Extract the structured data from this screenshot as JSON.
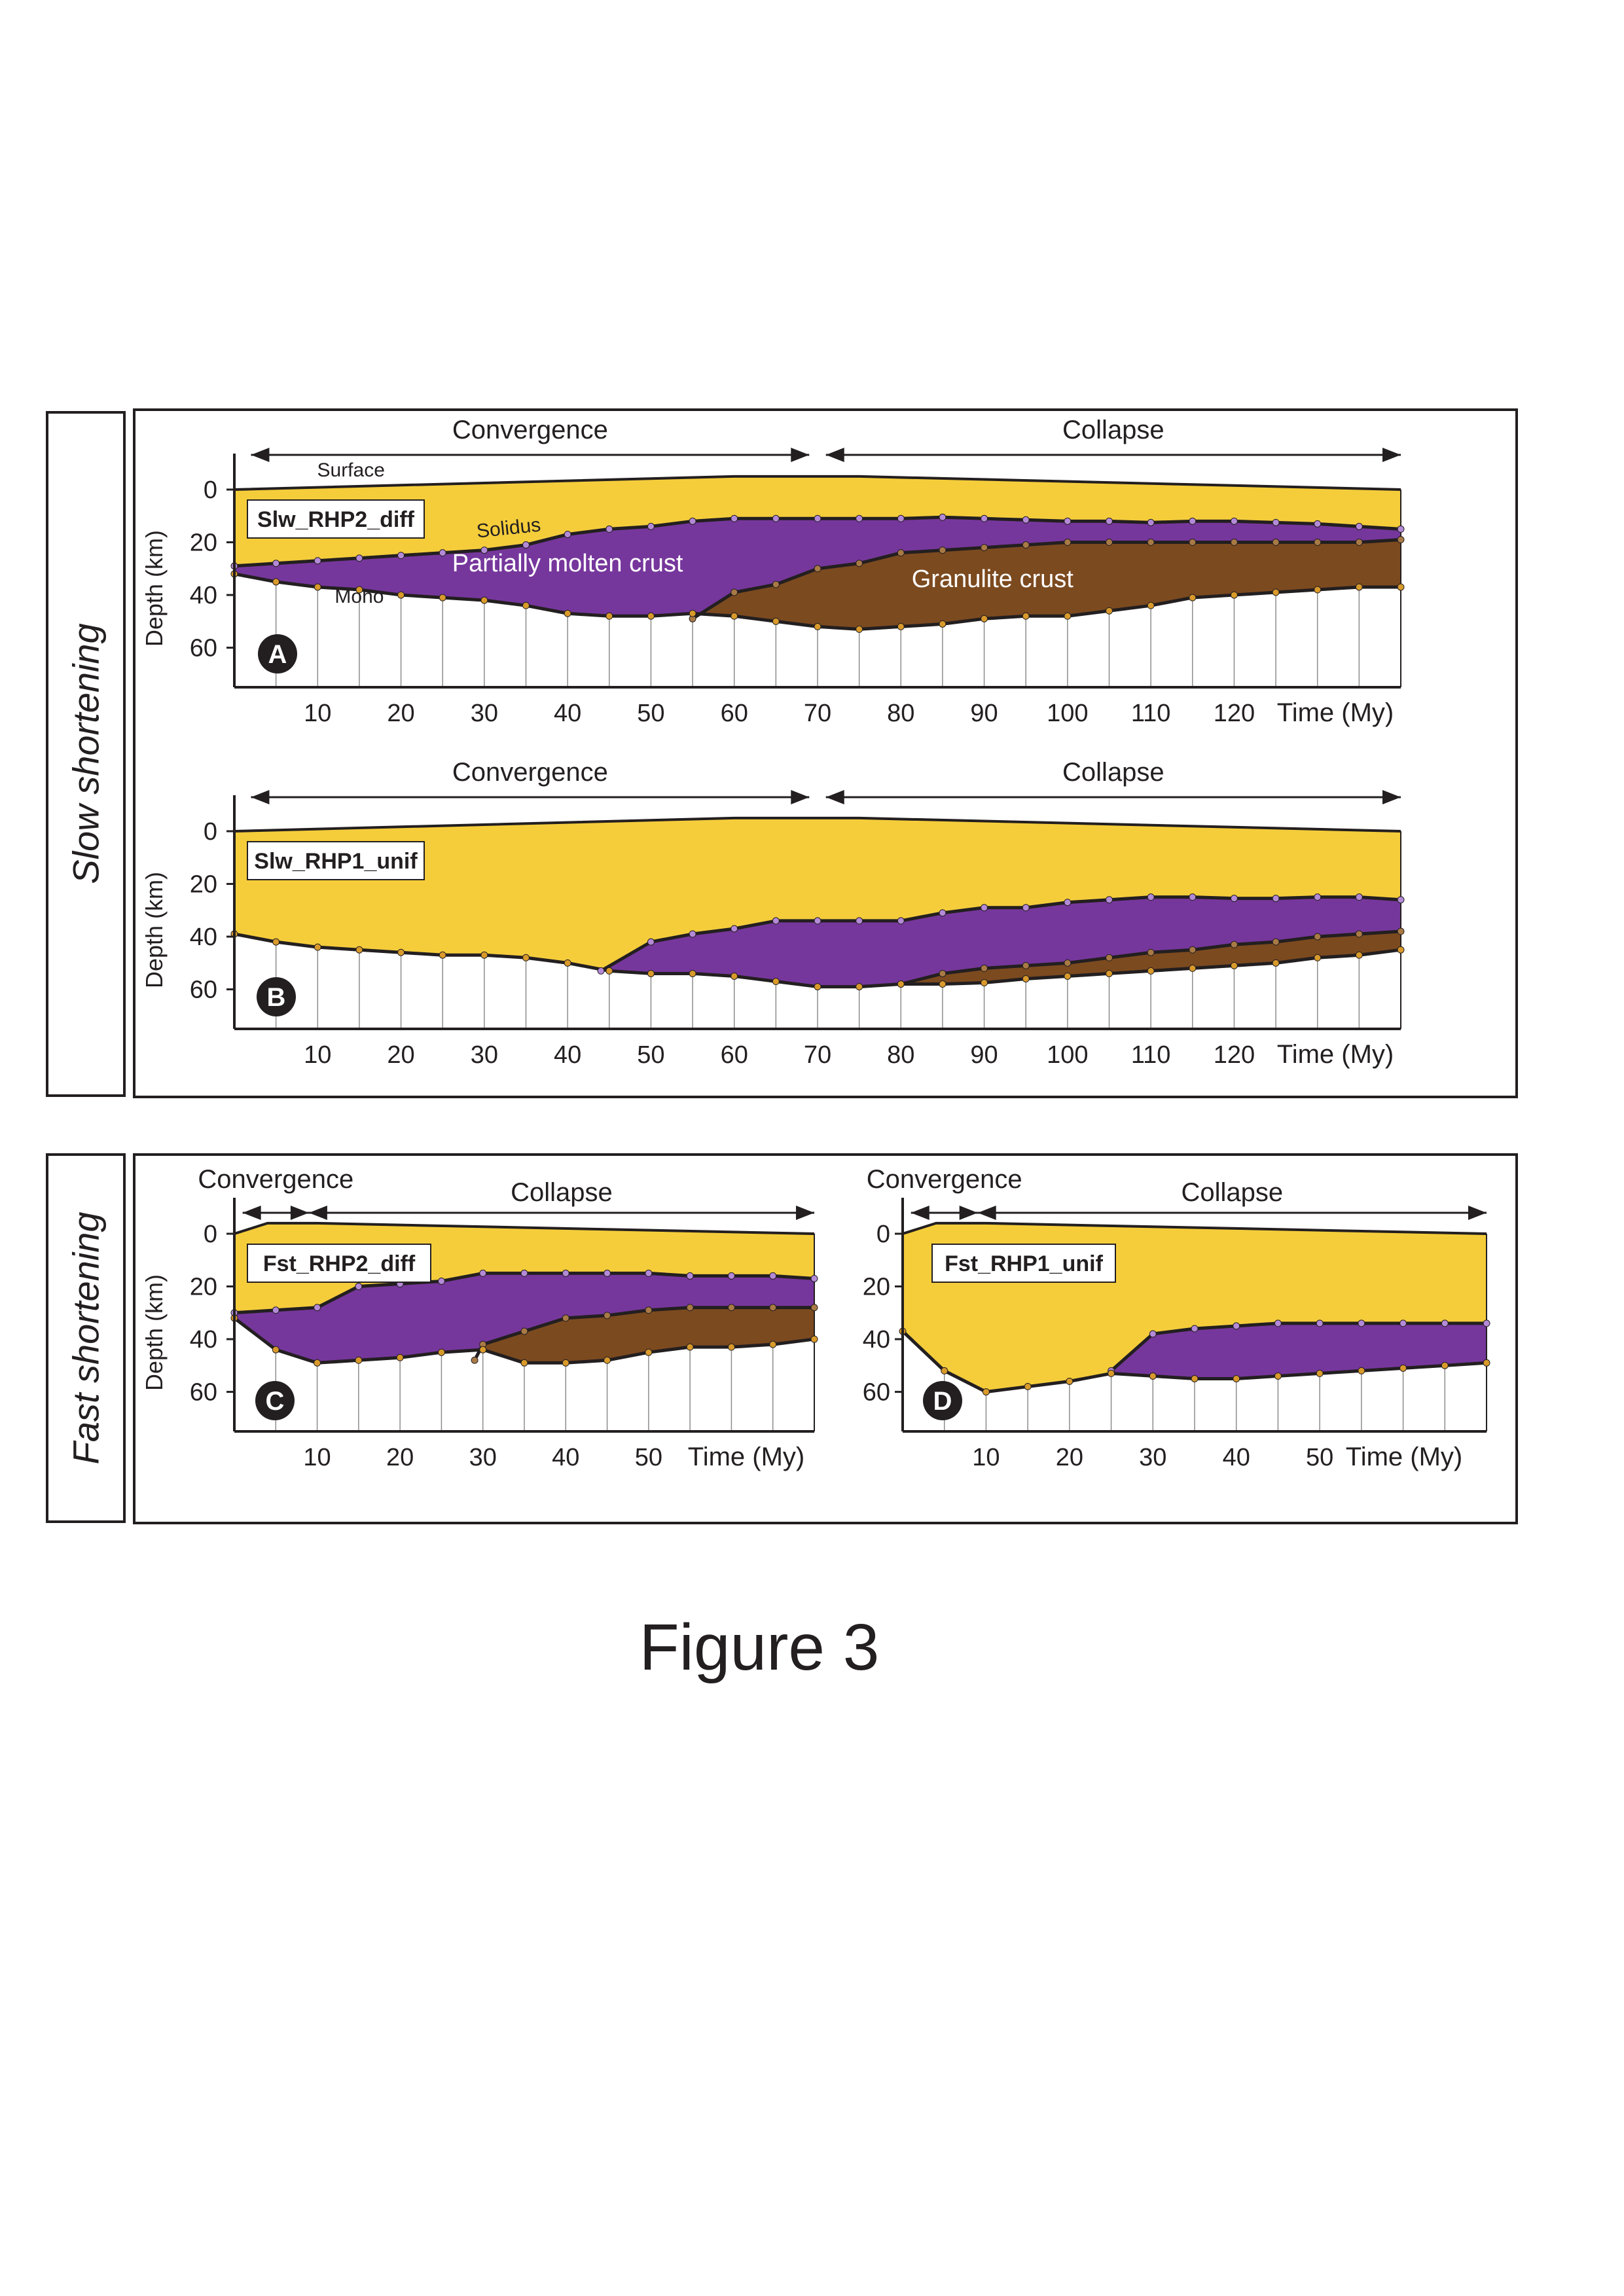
{
  "figure": {
    "caption": "Figure 3"
  },
  "groups": [
    {
      "label": "Slow shortening"
    },
    {
      "label": "Fast shortening"
    }
  ],
  "colors": {
    "upper_crust": "#f5cd3b",
    "partially_molten": "#76379c",
    "granulite": "#7c4a1f",
    "outline": "#231f20",
    "grid": "#8c8c8c",
    "badge": "#231f20",
    "dot_purple": "#b48ad8",
    "dot_brown": "#a97a45",
    "dot_yellow": "#d99a2b"
  },
  "chart_data": [
    {
      "type": "area",
      "panel": "A",
      "model": "Slw_RHP2_diff",
      "ylabel": "Depth (km)",
      "xlabel": "Time (My)",
      "yticks": [
        "0",
        "20",
        "40",
        "60"
      ],
      "xticks": [
        "10",
        "20",
        "30",
        "40",
        "50",
        "60",
        "70",
        "80",
        "90",
        "100",
        "110",
        "120"
      ],
      "ylim": [
        0,
        75
      ],
      "xlim": [
        0,
        140
      ],
      "phases": [
        {
          "label": "Convergence",
          "x_start": 2,
          "x_end": 69
        },
        {
          "label": "Collapse",
          "x_start": 71,
          "x_end": 140
        }
      ],
      "annotations": [
        {
          "text": "Surface",
          "x": 14,
          "y": -5,
          "color": "#231f20",
          "size": 30,
          "rotate": 0
        },
        {
          "text": "Solidus",
          "x": 33,
          "y": 17,
          "color": "#231f20",
          "size": 30,
          "rotate": -6
        },
        {
          "text": "Moho",
          "x": 15,
          "y": 43,
          "color": "#231f20",
          "size": 30,
          "rotate": 0
        },
        {
          "text": "Partially molten crust",
          "x": 40,
          "y": 31,
          "color": "#ffffff",
          "size": 38,
          "rotate": 0
        },
        {
          "text": "Granulite crust",
          "x": 91,
          "y": 37,
          "color": "#ffffff",
          "size": 38,
          "rotate": 0
        }
      ],
      "surface": {
        "x": [
          0,
          60,
          75,
          140
        ],
        "y": [
          0,
          -5,
          -5,
          0
        ]
      },
      "series": [
        {
          "name": "Solidus",
          "x": [
            0,
            5,
            10,
            15,
            20,
            25,
            30,
            35,
            40,
            45,
            50,
            55,
            60,
            65,
            70,
            75,
            80,
            85,
            90,
            95,
            100,
            105,
            110,
            115,
            120,
            125,
            130,
            135,
            140
          ],
          "y": [
            29,
            28,
            27,
            26,
            25,
            24,
            23,
            21,
            17,
            15,
            14,
            12,
            11,
            11,
            11,
            11,
            11,
            10.5,
            11,
            11.5,
            12,
            12,
            12.5,
            12,
            12,
            12.5,
            13,
            14,
            15
          ]
        },
        {
          "name": "Granulite top",
          "x": [
            55,
            60,
            65,
            70,
            75,
            80,
            85,
            90,
            95,
            100,
            105,
            110,
            115,
            120,
            125,
            130,
            135,
            140
          ],
          "y": [
            49,
            39,
            36,
            30,
            28,
            24,
            23,
            22,
            21,
            20,
            20,
            20,
            20,
            20,
            20,
            20,
            20,
            19
          ]
        },
        {
          "name": "Moho",
          "x": [
            0,
            5,
            10,
            15,
            20,
            25,
            30,
            35,
            40,
            45,
            50,
            55,
            60,
            65,
            70,
            75,
            80,
            85,
            90,
            95,
            100,
            105,
            110,
            115,
            120,
            125,
            130,
            135,
            140
          ],
          "y": [
            32,
            35,
            37,
            38,
            40,
            41,
            42,
            44,
            47,
            48,
            48,
            47,
            48,
            50,
            52,
            53,
            52,
            51,
            49,
            48,
            48,
            46,
            44,
            41,
            40,
            39,
            38,
            37,
            37
          ]
        }
      ]
    },
    {
      "type": "area",
      "panel": "B",
      "model": "Slw_RHP1_unif",
      "ylabel": "Depth (km)",
      "xlabel": "Time (My)",
      "yticks": [
        "0",
        "20",
        "40",
        "60"
      ],
      "xticks": [
        "10",
        "20",
        "30",
        "40",
        "50",
        "60",
        "70",
        "80",
        "90",
        "100",
        "110",
        "120"
      ],
      "ylim": [
        0,
        75
      ],
      "xlim": [
        0,
        140
      ],
      "phases": [
        {
          "label": "Convergence",
          "x_start": 2,
          "x_end": 69
        },
        {
          "label": "Collapse",
          "x_start": 71,
          "x_end": 140
        }
      ],
      "annotations": [],
      "surface": {
        "x": [
          0,
          60,
          75,
          140
        ],
        "y": [
          0,
          -5,
          -5,
          0
        ]
      },
      "series": [
        {
          "name": "Solidus",
          "x": [
            44,
            50,
            55,
            60,
            65,
            70,
            75,
            80,
            85,
            90,
            95,
            100,
            105,
            110,
            115,
            120,
            125,
            130,
            135,
            140
          ],
          "y": [
            53,
            42,
            39,
            37,
            34,
            34,
            34,
            34,
            31,
            29,
            29,
            27,
            26,
            25,
            25,
            25.5,
            25.5,
            25,
            25,
            26
          ]
        },
        {
          "name": "Granulite top",
          "x": [
            80,
            85,
            90,
            95,
            100,
            105,
            110,
            115,
            120,
            125,
            130,
            135,
            140
          ],
          "y": [
            58,
            54,
            52,
            51,
            50,
            48,
            46,
            45,
            43,
            42,
            40,
            39,
            38
          ]
        },
        {
          "name": "Moho",
          "x": [
            0,
            5,
            10,
            15,
            20,
            25,
            30,
            35,
            40,
            45,
            50,
            55,
            60,
            65,
            70,
            75,
            80,
            85,
            90,
            95,
            100,
            105,
            110,
            115,
            120,
            125,
            130,
            135,
            140
          ],
          "y": [
            39,
            42,
            44,
            45,
            46,
            47,
            47,
            48,
            50,
            53,
            54,
            54,
            55,
            57,
            59,
            59,
            58,
            58,
            57.5,
            56,
            55,
            54,
            53,
            52,
            51,
            50,
            48,
            47,
            45
          ]
        }
      ]
    },
    {
      "type": "area",
      "panel": "C",
      "model": "Fst_RHP2_diff",
      "ylabel": "Depth (km)",
      "xlabel": "Time (My)",
      "yticks": [
        "0",
        "20",
        "40",
        "60"
      ],
      "xticks": [
        "10",
        "20",
        "30",
        "40",
        "50"
      ],
      "ylim": [
        0,
        75
      ],
      "xlim": [
        0,
        70
      ],
      "phases": [
        {
          "label": "Convergence",
          "x_start": 1,
          "x_end": 9
        },
        {
          "label": "Collapse",
          "x_start": 9,
          "x_end": 70
        }
      ],
      "annotations": [],
      "surface": {
        "x": [
          0,
          4,
          10,
          70
        ],
        "y": [
          0,
          -4,
          -4,
          0
        ]
      },
      "series": [
        {
          "name": "Solidus",
          "x": [
            0,
            5,
            10,
            15,
            20,
            25,
            30,
            35,
            40,
            45,
            50,
            55,
            60,
            65,
            70
          ],
          "y": [
            30,
            29,
            28,
            20,
            19,
            18,
            15,
            15,
            15,
            15,
            15,
            16,
            16,
            16,
            17
          ]
        },
        {
          "name": "Granulite top",
          "x": [
            29,
            30,
            35,
            40,
            45,
            50,
            55,
            60,
            65,
            70
          ],
          "y": [
            48,
            42,
            37,
            32,
            31,
            29,
            28,
            28,
            28,
            28
          ]
        },
        {
          "name": "Moho",
          "x": [
            0,
            5,
            10,
            15,
            20,
            25,
            30,
            35,
            40,
            45,
            50,
            55,
            60,
            65,
            70
          ],
          "y": [
            32,
            44,
            49,
            48,
            47,
            45,
            44,
            49,
            49,
            48,
            45,
            43,
            43,
            42,
            40
          ]
        }
      ]
    },
    {
      "type": "area",
      "panel": "D",
      "model": "Fst_RHP1_unif",
      "ylabel": "",
      "xlabel": "Time (My)",
      "yticks": [
        "0",
        "20",
        "40",
        "60"
      ],
      "xticks": [
        "10",
        "20",
        "30",
        "40",
        "50"
      ],
      "ylim": [
        0,
        75
      ],
      "xlim": [
        0,
        70
      ],
      "phases": [
        {
          "label": "Convergence",
          "x_start": 1,
          "x_end": 9
        },
        {
          "label": "Collapse",
          "x_start": 9,
          "x_end": 70
        }
      ],
      "annotations": [],
      "surface": {
        "x": [
          0,
          4,
          10,
          70
        ],
        "y": [
          0,
          -4,
          -4,
          0
        ]
      },
      "series": [
        {
          "name": "Solidus",
          "x": [
            25,
            30,
            35,
            40,
            45,
            50,
            55,
            60,
            65,
            70
          ],
          "y": [
            52,
            38,
            36,
            35,
            34,
            34,
            34,
            34,
            34,
            34
          ]
        },
        {
          "name": "Granulite top",
          "x": [],
          "y": []
        },
        {
          "name": "Moho",
          "x": [
            0,
            5,
            10,
            15,
            20,
            25,
            30,
            35,
            40,
            45,
            50,
            55,
            60,
            65,
            70
          ],
          "y": [
            37,
            52,
            60,
            58,
            56,
            53,
            54,
            55,
            55,
            54,
            53,
            52,
            51,
            50,
            49
          ]
        }
      ]
    }
  ]
}
